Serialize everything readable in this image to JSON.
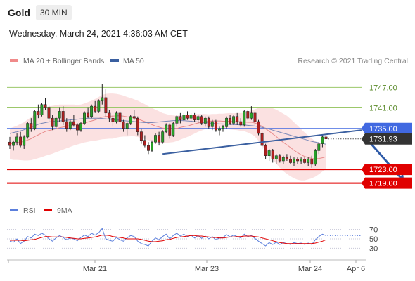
{
  "header": {
    "symbol": "Gold",
    "timeframe": "30 MIN",
    "datetime": "Wednesday, March 24, 2021 4:36:03 AM CET"
  },
  "legend": {
    "items": [
      {
        "label": "MA 20 + Bollinger Bands",
        "color": "#f08a8a"
      },
      {
        "label": "MA 50",
        "color": "#3a5fa0"
      }
    ],
    "copyright": "Research © 2021 Trading Central"
  },
  "rsi_legend": {
    "items": [
      {
        "label": "RSI",
        "color": "#5b7fdc"
      },
      {
        "label": "9MA",
        "color": "#e00000"
      }
    ]
  },
  "colors": {
    "accent_blue": "#4169e1",
    "support_red": "#e00000",
    "resistance_green": "#9cc86a",
    "candle_green": "#28a028",
    "candle_red": "#b02020",
    "bollinger_fill": "#f8c8c8",
    "trendline": "#3a5fa0"
  },
  "chart_data": [
    {
      "type": "candlestick",
      "title": "",
      "x_tick_labels": [
        "Mar 21",
        "Mar 23",
        "Mar 24",
        "Apr 6"
      ],
      "y_range": [
        1714,
        1752
      ],
      "price_levels": [
        {
          "value": 1747.0,
          "label": "1747.00",
          "kind": "resistance"
        },
        {
          "value": 1741.0,
          "label": "1741.00",
          "kind": "resistance"
        },
        {
          "value": 1735.0,
          "label": "1735.00",
          "kind": "pivot"
        },
        {
          "value": 1723.0,
          "label": "1723.00",
          "kind": "support"
        },
        {
          "value": 1719.0,
          "label": "1719.00",
          "kind": "support"
        }
      ],
      "last_price": {
        "value": 1731.93,
        "label": "1731.93"
      },
      "grid": false,
      "ohlc": [
        [
          1731.0,
          1732.5,
          1729.0,
          1730.0
        ],
        [
          1730.0,
          1731.5,
          1728.5,
          1731.0
        ],
        [
          1731.0,
          1733.5,
          1730.0,
          1732.5
        ],
        [
          1732.5,
          1734.0,
          1729.5,
          1730.0
        ],
        [
          1730.0,
          1733.0,
          1729.0,
          1732.5
        ],
        [
          1732.5,
          1737.0,
          1732.0,
          1736.5
        ],
        [
          1736.5,
          1738.0,
          1734.0,
          1735.0
        ],
        [
          1735.0,
          1740.5,
          1734.5,
          1740.0
        ],
        [
          1740.0,
          1742.0,
          1738.0,
          1739.0
        ],
        [
          1739.0,
          1742.5,
          1738.5,
          1742.0
        ],
        [
          1742.0,
          1744.0,
          1740.5,
          1741.0
        ],
        [
          1741.0,
          1742.0,
          1737.0,
          1738.0
        ],
        [
          1738.0,
          1739.0,
          1734.5,
          1735.5
        ],
        [
          1735.5,
          1738.5,
          1735.0,
          1738.0
        ],
        [
          1738.0,
          1741.0,
          1737.0,
          1740.0
        ],
        [
          1740.0,
          1741.5,
          1736.0,
          1737.0
        ],
        [
          1737.0,
          1738.0,
          1734.0,
          1735.0
        ],
        [
          1735.0,
          1737.5,
          1734.5,
          1737.0
        ],
        [
          1737.0,
          1739.0,
          1735.5,
          1736.0
        ],
        [
          1736.0,
          1736.5,
          1733.0,
          1734.5
        ],
        [
          1734.5,
          1737.0,
          1734.0,
          1736.5
        ],
        [
          1736.5,
          1740.0,
          1736.0,
          1739.5
        ],
        [
          1739.5,
          1741.0,
          1738.0,
          1738.5
        ],
        [
          1738.5,
          1742.0,
          1738.0,
          1741.5
        ],
        [
          1741.5,
          1743.0,
          1739.5,
          1740.0
        ],
        [
          1740.0,
          1743.5,
          1739.5,
          1743.0
        ],
        [
          1743.0,
          1748.0,
          1742.0,
          1744.0
        ],
        [
          1744.0,
          1746.5,
          1738.5,
          1739.5
        ],
        [
          1739.5,
          1740.5,
          1737.0,
          1738.0
        ],
        [
          1738.0,
          1739.0,
          1735.5,
          1737.0
        ],
        [
          1737.0,
          1740.0,
          1736.5,
          1739.5
        ],
        [
          1739.5,
          1740.0,
          1736.5,
          1737.0
        ],
        [
          1737.0,
          1737.5,
          1734.0,
          1735.0
        ],
        [
          1735.0,
          1737.0,
          1733.0,
          1736.5
        ],
        [
          1736.5,
          1739.0,
          1736.0,
          1738.5
        ],
        [
          1738.5,
          1740.5,
          1737.5,
          1738.0
        ],
        [
          1738.0,
          1738.5,
          1733.0,
          1734.0
        ],
        [
          1734.0,
          1735.0,
          1730.5,
          1731.5
        ],
        [
          1731.5,
          1733.0,
          1729.5,
          1730.0
        ],
        [
          1730.0,
          1731.0,
          1727.5,
          1728.5
        ],
        [
          1728.5,
          1731.5,
          1728.0,
          1731.0
        ],
        [
          1731.0,
          1733.5,
          1730.5,
          1733.0
        ],
        [
          1733.0,
          1734.0,
          1730.0,
          1731.0
        ],
        [
          1731.0,
          1734.5,
          1730.5,
          1734.0
        ],
        [
          1734.0,
          1736.5,
          1733.5,
          1736.0
        ],
        [
          1736.0,
          1736.5,
          1732.0,
          1733.0
        ],
        [
          1733.0,
          1737.0,
          1732.5,
          1736.5
        ],
        [
          1736.5,
          1739.0,
          1735.5,
          1738.5
        ],
        [
          1738.5,
          1739.5,
          1736.5,
          1737.5
        ],
        [
          1737.5,
          1739.5,
          1737.0,
          1739.0
        ],
        [
          1739.0,
          1740.0,
          1737.5,
          1738.0
        ],
        [
          1738.0,
          1739.5,
          1737.0,
          1739.0
        ],
        [
          1739.0,
          1739.5,
          1737.0,
          1737.5
        ],
        [
          1737.5,
          1739.0,
          1736.5,
          1738.5
        ],
        [
          1738.5,
          1739.0,
          1736.0,
          1736.5
        ],
        [
          1736.5,
          1738.5,
          1735.5,
          1738.0
        ],
        [
          1738.0,
          1738.5,
          1735.0,
          1735.5
        ],
        [
          1735.5,
          1737.5,
          1734.5,
          1737.0
        ],
        [
          1737.0,
          1737.5,
          1734.0,
          1734.5
        ],
        [
          1734.5,
          1735.5,
          1733.0,
          1735.0
        ],
        [
          1735.0,
          1736.0,
          1734.0,
          1735.5
        ],
        [
          1735.5,
          1738.5,
          1735.0,
          1738.0
        ],
        [
          1738.0,
          1739.0,
          1736.0,
          1736.5
        ],
        [
          1736.5,
          1739.0,
          1736.0,
          1738.5
        ],
        [
          1738.5,
          1739.5,
          1736.0,
          1737.0
        ],
        [
          1737.0,
          1738.0,
          1735.5,
          1736.0
        ],
        [
          1736.0,
          1740.5,
          1735.5,
          1740.0
        ],
        [
          1740.0,
          1740.5,
          1737.5,
          1738.0
        ],
        [
          1738.0,
          1741.5,
          1737.5,
          1739.5
        ],
        [
          1739.5,
          1740.0,
          1736.0,
          1737.0
        ],
        [
          1737.0,
          1737.5,
          1733.0,
          1733.5
        ],
        [
          1733.5,
          1734.0,
          1729.0,
          1730.0
        ],
        [
          1730.0,
          1730.5,
          1726.0,
          1727.0
        ],
        [
          1727.0,
          1729.0,
          1725.5,
          1728.5
        ],
        [
          1728.5,
          1729.0,
          1725.0,
          1726.0
        ],
        [
          1726.0,
          1727.5,
          1724.5,
          1727.0
        ],
        [
          1727.0,
          1727.5,
          1725.0,
          1725.5
        ],
        [
          1725.5,
          1727.0,
          1724.5,
          1726.5
        ],
        [
          1726.5,
          1727.5,
          1725.5,
          1726.0
        ],
        [
          1726.0,
          1727.0,
          1724.5,
          1725.0
        ],
        [
          1725.0,
          1726.5,
          1724.0,
          1726.0
        ],
        [
          1726.0,
          1726.5,
          1724.5,
          1725.5
        ],
        [
          1725.5,
          1726.5,
          1724.5,
          1726.0
        ],
        [
          1726.0,
          1726.5,
          1724.5,
          1725.0
        ],
        [
          1725.0,
          1726.5,
          1724.0,
          1726.0
        ],
        [
          1726.0,
          1727.0,
          1723.5,
          1724.5
        ],
        [
          1724.5,
          1729.0,
          1724.0,
          1728.5
        ],
        [
          1728.5,
          1731.0,
          1727.5,
          1730.5
        ],
        [
          1730.5,
          1733.0,
          1729.5,
          1732.5
        ],
        [
          1732.5,
          1733.5,
          1731.0,
          1731.93
        ]
      ],
      "ma20": [
        1730.5,
        1730.6,
        1730.8,
        1731.0,
        1731.2,
        1731.6,
        1732.0,
        1732.6,
        1733.1,
        1733.6,
        1734.1,
        1734.4,
        1734.6,
        1734.9,
        1735.2,
        1735.4,
        1735.6,
        1735.8,
        1736.0,
        1736.1,
        1736.3,
        1736.6,
        1736.9,
        1737.2,
        1737.5,
        1737.9,
        1738.3,
        1738.5,
        1738.6,
        1738.6,
        1738.7,
        1738.7,
        1738.6,
        1738.4,
        1738.3,
        1738.1,
        1737.8,
        1737.4,
        1737.0,
        1736.5,
        1736.1,
        1735.7,
        1735.4,
        1735.1,
        1735.0,
        1734.9,
        1734.9,
        1735.0,
        1735.3,
        1735.5,
        1735.7,
        1736.0,
        1736.3,
        1736.6,
        1736.8,
        1737.0,
        1737.1,
        1737.2,
        1737.2,
        1737.2,
        1737.1,
        1737.1,
        1737.1,
        1737.0,
        1737.0,
        1736.9,
        1736.9,
        1736.8,
        1736.8,
        1736.6,
        1736.2,
        1735.6,
        1734.9,
        1734.2,
        1733.4,
        1732.6,
        1731.7,
        1730.9,
        1730.2,
        1729.4,
        1728.6,
        1727.9,
        1727.3,
        1726.8,
        1726.5,
        1726.2,
        1726.1,
        1726.2,
        1726.4,
        1726.7
      ],
      "bb_width": [
        4.5,
        4.8,
        5.0,
        5.3,
        5.6,
        6.0,
        6.3,
        6.6,
        6.8,
        7.0,
        7.1,
        7.1,
        7.0,
        6.9,
        6.8,
        6.6,
        6.4,
        6.2,
        6.0,
        5.8,
        5.7,
        5.7,
        5.8,
        5.9,
        6.1,
        6.3,
        6.5,
        6.6,
        6.6,
        6.6,
        6.4,
        6.2,
        6.0,
        5.8,
        5.6,
        5.4,
        5.3,
        5.2,
        5.1,
        5.0,
        4.9,
        4.8,
        4.6,
        4.4,
        4.2,
        4.0,
        3.9,
        3.7,
        3.6,
        3.4,
        3.2,
        3.0,
        2.8,
        2.6,
        2.4,
        2.2,
        2.0,
        2.0,
        2.0,
        2.1,
        2.2,
        2.3,
        2.4,
        2.4,
        2.5,
        2.6,
        2.7,
        3.0,
        3.5,
        4.0,
        4.8,
        5.6,
        6.4,
        7.0,
        7.5,
        7.9,
        8.2,
        8.4,
        8.5,
        8.4,
        8.2,
        7.9,
        7.5,
        7.0,
        6.4,
        5.8,
        5.2,
        4.6,
        4.0,
        3.6
      ],
      "ma50": [
        1733.5,
        1733.8,
        1734.0,
        1734.3,
        1734.6,
        1735.0,
        1735.4,
        1735.8,
        1736.2,
        1736.5,
        1736.7,
        1736.9,
        1737.0,
        1737.1,
        1737.2,
        1737.3,
        1737.4,
        1737.5,
        1737.6,
        1737.7,
        1737.8,
        1737.9,
        1738.0,
        1738.0,
        1738.0,
        1738.0,
        1737.9,
        1737.8,
        1737.7,
        1737.6,
        1737.5,
        1737.4,
        1737.3,
        1737.2,
        1737.1,
        1737.0,
        1736.9,
        1736.8,
        1736.7,
        1736.7,
        1736.7,
        1736.8,
        1736.9,
        1737.0,
        1737.1,
        1737.2,
        1737.3,
        1737.3,
        1737.3,
        1737.3,
        1737.2,
        1737.1,
        1737.0,
        1736.9,
        1736.8,
        1736.7,
        1736.6,
        1736.5,
        1736.4,
        1736.3,
        1736.3,
        1736.2,
        1736.2,
        1736.1,
        1736.1,
        1736.0,
        1736.0,
        1735.9,
        1735.8,
        1735.7,
        1735.5,
        1735.3,
        1735.1,
        1734.8,
        1734.5,
        1734.2,
        1733.9,
        1733.6,
        1733.3,
        1733.0,
        1732.7,
        1732.4,
        1732.1,
        1731.8,
        1731.5,
        1731.2,
        1731.0,
        1730.8,
        1730.6,
        1730.4
      ],
      "trendline": {
        "from": [
          43,
          1727.5
        ],
        "to": [
          99,
          1734.5
        ]
      },
      "projection_arrow": {
        "from": [
          100,
          1732.5
        ],
        "to": [
          111,
          1719.5
        ]
      }
    },
    {
      "type": "line",
      "title": "",
      "y_tick_labels": [
        "70",
        "50",
        "30"
      ],
      "y_range": [
        20,
        80
      ],
      "series": [
        {
          "name": "RSI",
          "values": [
            45,
            43,
            50,
            40,
            45,
            55,
            52,
            60,
            57,
            62,
            58,
            50,
            45,
            52,
            57,
            53,
            48,
            52,
            50,
            46,
            53,
            58,
            55,
            62,
            58,
            63,
            72,
            50,
            47,
            45,
            53,
            48,
            45,
            52,
            57,
            55,
            45,
            40,
            38,
            35,
            45,
            52,
            48,
            55,
            60,
            50,
            57,
            62,
            56,
            60,
            55,
            58,
            52,
            57,
            51,
            56,
            50,
            55,
            48,
            52,
            53,
            59,
            54,
            58,
            55,
            52,
            60,
            55,
            57,
            51,
            45,
            40,
            35,
            42,
            38,
            43,
            38,
            42,
            40,
            38,
            42,
            40,
            41,
            38,
            41,
            38,
            48,
            55,
            60,
            57
          ]
        },
        {
          "name": "9MA",
          "values": [
            47,
            47,
            47,
            47,
            46,
            47,
            48,
            49,
            51,
            53,
            55,
            55,
            54,
            54,
            54,
            54,
            53,
            52,
            51,
            50,
            50,
            51,
            52,
            53,
            54,
            56,
            58,
            58,
            57,
            55,
            54,
            53,
            52,
            50,
            50,
            50,
            50,
            49,
            47,
            45,
            44,
            44,
            45,
            46,
            48,
            49,
            51,
            53,
            54,
            55,
            56,
            57,
            57,
            56,
            56,
            55,
            54,
            53,
            53,
            52,
            52,
            53,
            54,
            54,
            55,
            55,
            56,
            56,
            56,
            55,
            54,
            52,
            50,
            48,
            46,
            44,
            42,
            41,
            40,
            40,
            40,
            40,
            40,
            40,
            40,
            40,
            41,
            43,
            45,
            48
          ]
        }
      ]
    }
  ]
}
